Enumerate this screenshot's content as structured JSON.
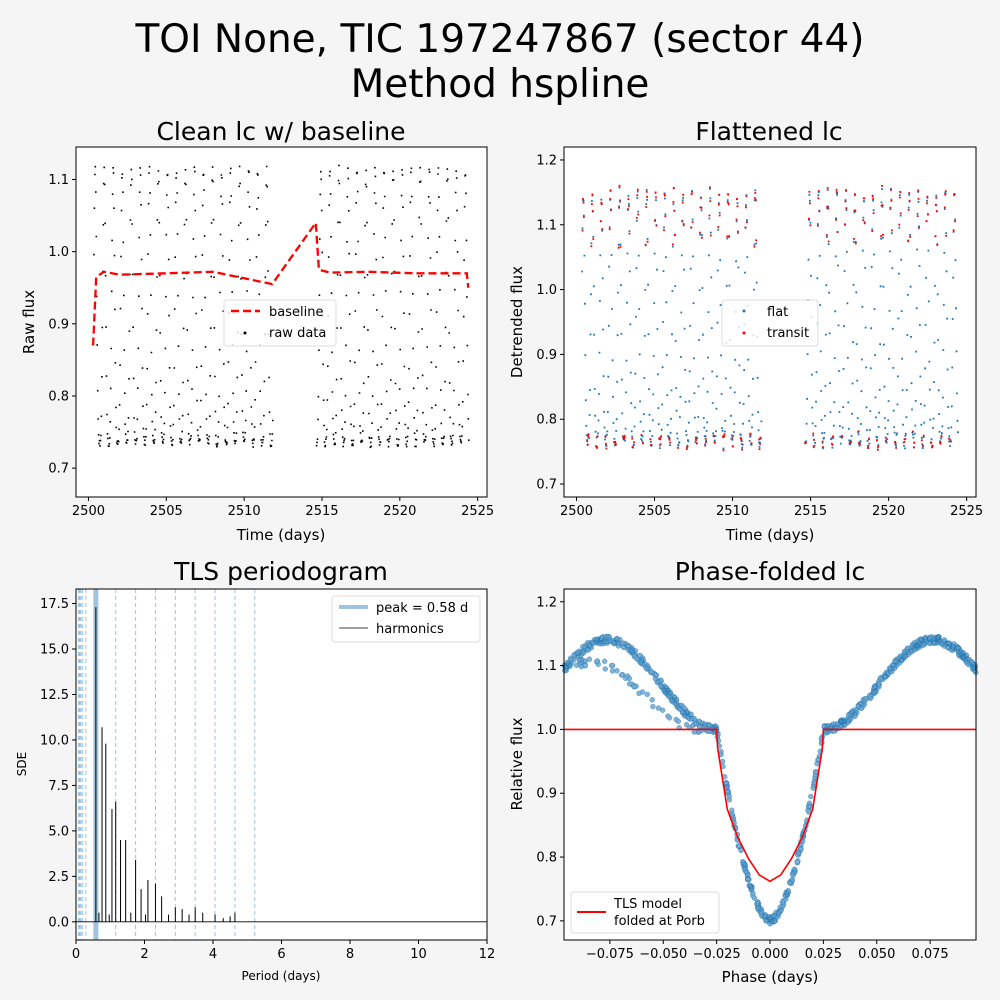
{
  "figure": {
    "title_line1": "TOI None, TIC 197247867 (sector 44)",
    "title_line2": "Method hspline",
    "background": "#f5f5f5"
  },
  "chart_data": [
    {
      "id": "clean",
      "type": "scatter",
      "title": "Clean lc w/ baseline",
      "xlabel": "Time (days)",
      "ylabel": "Raw flux",
      "xlim": [
        2499.2,
        2525.6
      ],
      "ylim": [
        0.66,
        1.145
      ],
      "xticks": [
        2500,
        2505,
        2510,
        2515,
        2520,
        2525
      ],
      "yticks": [
        0.7,
        0.8,
        0.9,
        1.0,
        1.1
      ],
      "segments": [
        [
          2500.3,
          2511.8
        ],
        [
          2514.6,
          2524.4
        ]
      ],
      "pulsation": {
        "period": 0.58,
        "min": 0.69,
        "max": 1.115,
        "cadence": 0.03
      },
      "series": [
        {
          "name": "baseline",
          "kind": "dashed-line",
          "color": "#ff0000",
          "x": [
            2500.3,
            2500.5,
            2501.0,
            2502.0,
            2505.0,
            2508.0,
            2511.8,
            2514.6,
            2514.8,
            2515.5,
            2518.0,
            2521.0,
            2524.3,
            2524.4
          ],
          "y": [
            0.87,
            0.965,
            0.972,
            0.968,
            0.97,
            0.972,
            0.955,
            1.04,
            0.975,
            0.971,
            0.972,
            0.97,
            0.97,
            0.95
          ]
        },
        {
          "name": "raw data",
          "kind": "points",
          "color": "#000000"
        }
      ],
      "legend": "center-right"
    },
    {
      "id": "flat",
      "type": "scatter",
      "title": "Flattened lc",
      "xlabel": "Time (days)",
      "ylabel": "Detrended flux",
      "xlim": [
        2499.2,
        2525.6
      ],
      "ylim": [
        0.68,
        1.22
      ],
      "xticks": [
        2500,
        2505,
        2510,
        2515,
        2520,
        2525
      ],
      "yticks": [
        0.7,
        0.8,
        0.9,
        1.0,
        1.1,
        1.2
      ],
      "segments": [
        [
          2500.3,
          2511.8
        ],
        [
          2514.6,
          2524.4
        ]
      ],
      "pulsation": {
        "period": 0.58,
        "min": 0.72,
        "max": 1.15,
        "cadence": 0.03,
        "transit_floor": 0.73
      },
      "series": [
        {
          "name": "flat",
          "kind": "points",
          "color": "#1f77b4"
        },
        {
          "name": "transit",
          "kind": "points",
          "color": "#ff0000"
        }
      ],
      "legend": "center-right"
    },
    {
      "id": "tls",
      "type": "line",
      "title": "TLS periodogram",
      "xlabel": "Period (days)",
      "ylabel": "SDE",
      "xlim": [
        0,
        12
      ],
      "ylim": [
        -1.0,
        18.3
      ],
      "xticks": [
        0,
        2,
        4,
        6,
        8,
        10,
        12
      ],
      "yticks": [
        0.0,
        2.5,
        5.0,
        7.5,
        10.0,
        12.5,
        15.0,
        17.5
      ],
      "peak_period": 0.58,
      "harmonics": [
        0.0725,
        0.097,
        0.116,
        0.145,
        0.193,
        0.29,
        0.58,
        1.16,
        1.74,
        2.32,
        2.9,
        3.48,
        4.06,
        4.64,
        5.22
      ],
      "spikes": [
        {
          "x": 0.58,
          "y": 17.3
        },
        {
          "x": 0.67,
          "y": 0.5
        },
        {
          "x": 0.76,
          "y": 10.7
        },
        {
          "x": 0.87,
          "y": 9.8
        },
        {
          "x": 0.97,
          "y": 0.4
        },
        {
          "x": 1.05,
          "y": 6.2
        },
        {
          "x": 1.16,
          "y": 6.6
        },
        {
          "x": 1.3,
          "y": 4.5
        },
        {
          "x": 1.45,
          "y": 4.5
        },
        {
          "x": 1.6,
          "y": 0.5
        },
        {
          "x": 1.74,
          "y": 3.4
        },
        {
          "x": 1.9,
          "y": 1.8
        },
        {
          "x": 2.03,
          "y": 0.4
        },
        {
          "x": 2.1,
          "y": 2.3
        },
        {
          "x": 2.32,
          "y": 2.1
        },
        {
          "x": 2.5,
          "y": 1.4
        },
        {
          "x": 2.7,
          "y": 0.4
        },
        {
          "x": 2.9,
          "y": 0.8
        },
        {
          "x": 3.1,
          "y": 0.7
        },
        {
          "x": 3.3,
          "y": 0.4
        },
        {
          "x": 3.48,
          "y": 0.8
        },
        {
          "x": 3.7,
          "y": 0.5
        },
        {
          "x": 4.06,
          "y": 0.4
        },
        {
          "x": 4.3,
          "y": 0.2
        },
        {
          "x": 4.5,
          "y": 0.3
        },
        {
          "x": 4.64,
          "y": 0.5
        }
      ],
      "legend_peak": "peak = 0.58 d",
      "legend_harm": "harmonics",
      "peak_color": "#9ec4e0",
      "harm_color": "#000000",
      "legend": "top-right"
    },
    {
      "id": "fold",
      "type": "scatter",
      "title": "Phase-folded lc",
      "xlabel": "Phase (days)",
      "ylabel": "Relative flux",
      "xlim": [
        -0.0965,
        0.0965
      ],
      "ylim": [
        0.67,
        1.22
      ],
      "xticks": [
        -0.075,
        -0.05,
        -0.025,
        0.0,
        0.025,
        0.05,
        0.075
      ],
      "xtick_labels": [
        "−0.075",
        "−0.050",
        "−0.025",
        "0.000",
        "0.025",
        "0.050",
        "0.075"
      ],
      "yticks": [
        0.7,
        0.8,
        0.9,
        1.0,
        1.1,
        1.2
      ],
      "series": [
        {
          "name": "data",
          "kind": "points",
          "color": "#1f77b4"
        },
        {
          "name": "TLS model",
          "kind": "line",
          "color": "#ff0000",
          "x": [
            -0.0965,
            -0.025,
            -0.0245,
            -0.02,
            -0.015,
            -0.01,
            -0.005,
            0.0,
            0.005,
            0.01,
            0.015,
            0.02,
            0.0245,
            0.025,
            0.0965
          ],
          "y": [
            1.0,
            1.0,
            0.97,
            0.875,
            0.83,
            0.797,
            0.772,
            0.762,
            0.772,
            0.797,
            0.83,
            0.875,
            0.97,
            1.0,
            1.0
          ]
        }
      ],
      "legend_model_line1": "TLS model",
      "legend_model_line2": "folded at Porb",
      "legend": "bottom-left"
    }
  ]
}
